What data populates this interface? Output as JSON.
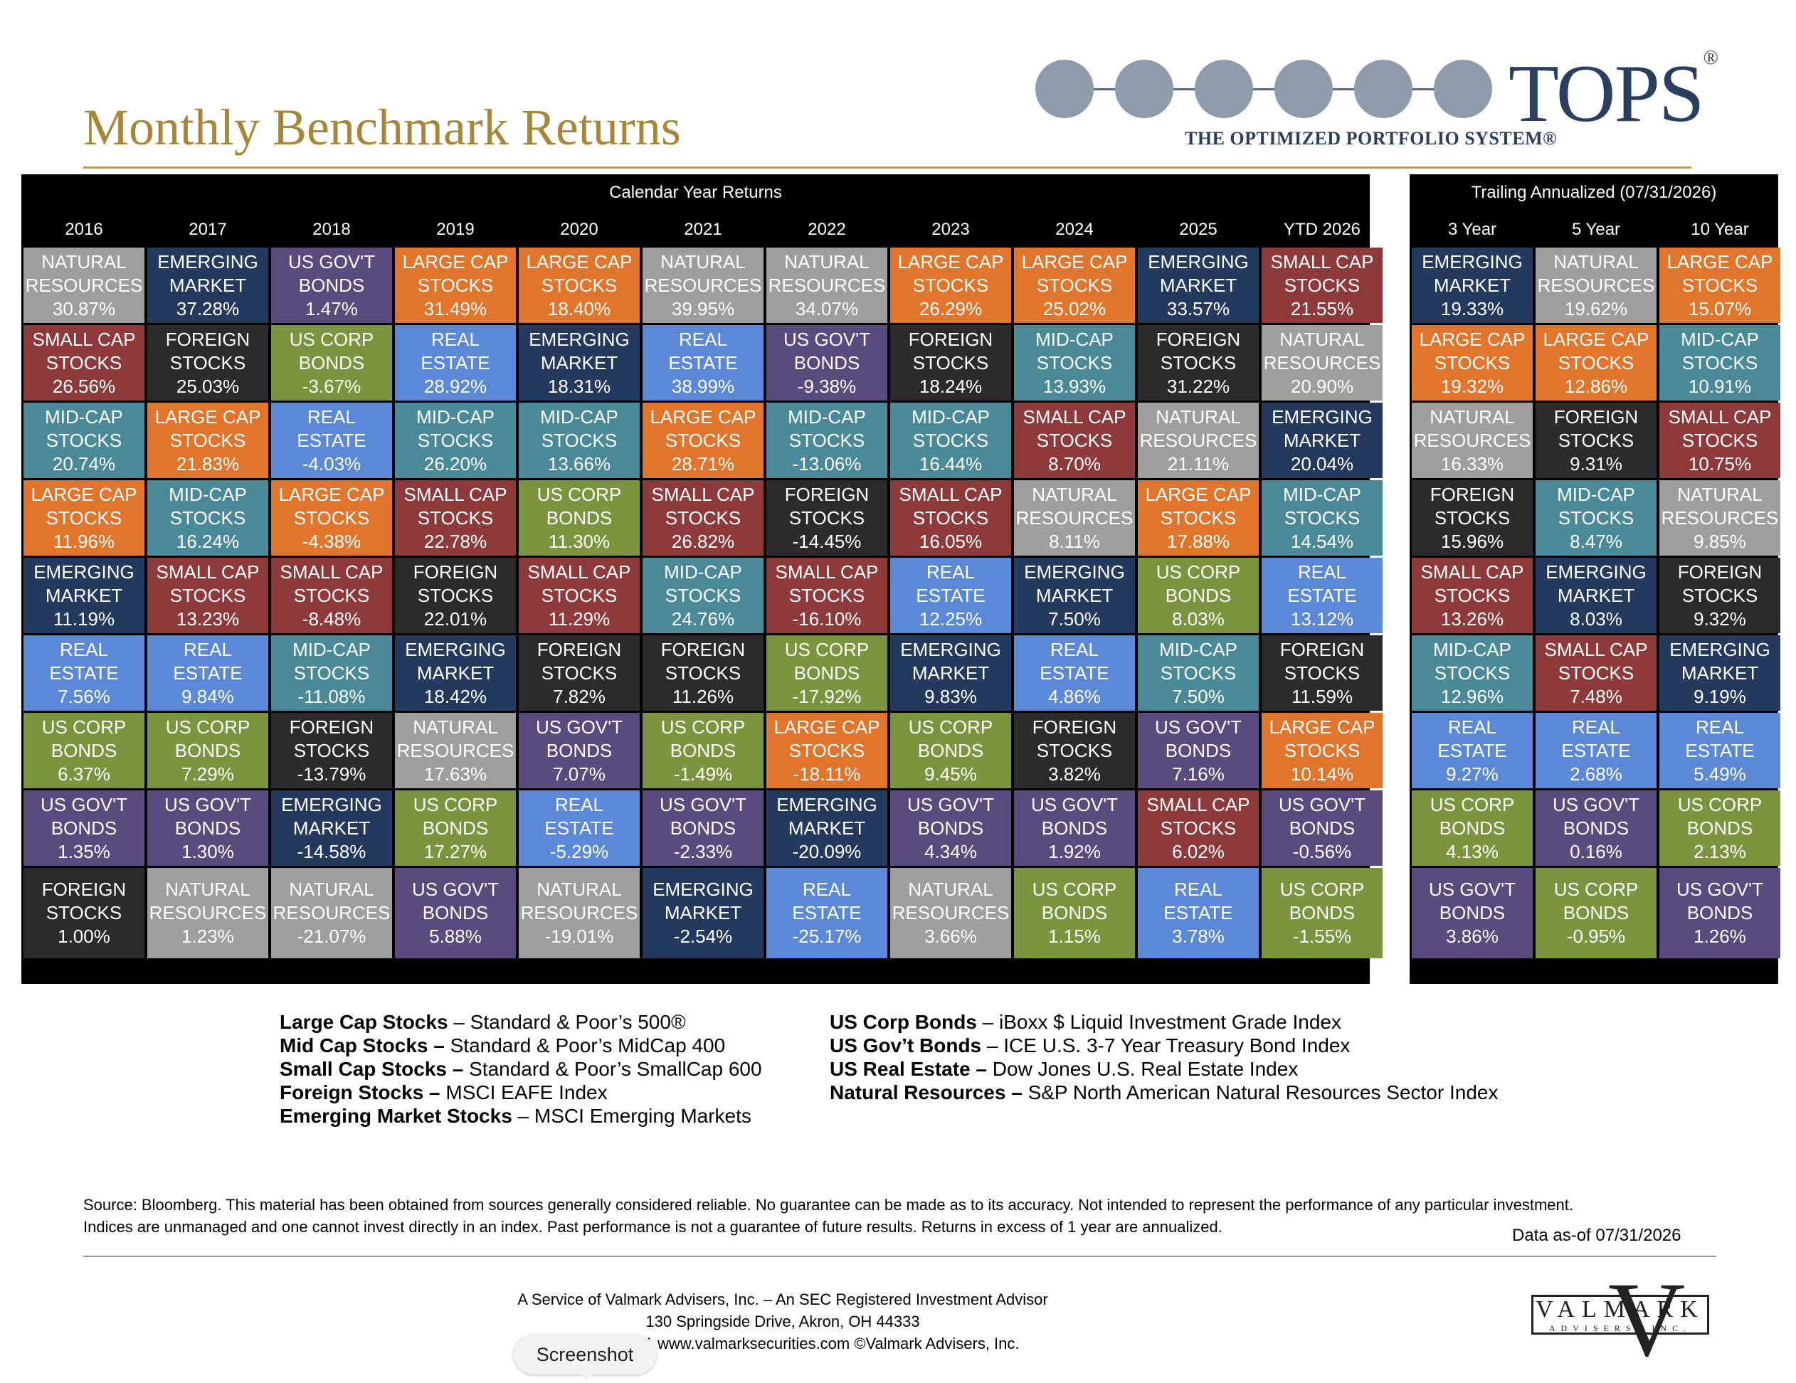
{
  "header": {
    "title": "Monthly Benchmark Returns",
    "logo_word": "TOPS",
    "logo_reg": "®",
    "logo_tagline": "THE OPTIMIZED PORTFOLIO SYSTEM®"
  },
  "calendar": {
    "banner": "Calendar Year Returns",
    "columns": [
      "2016",
      "2017",
      "2018",
      "2019",
      "2020",
      "2021",
      "2022",
      "2023",
      "2024",
      "2025",
      "YTD 2026"
    ]
  },
  "trailing": {
    "banner": "Trailing Annualized (07/31/2026)",
    "columns": [
      "3 Year",
      "5 Year",
      "10 Year"
    ]
  },
  "asset_colors": {
    "NR": "#9e9e9e",
    "EM": "#233a5e",
    "GOV": "#5a4a7e",
    "LC": "#e0752b",
    "SC": "#8e3a3a",
    "FOR": "#2b2b2b",
    "CORP": "#7a953e",
    "RE": "#5b89d8",
    "MID": "#4a8a98"
  },
  "asset_labels": {
    "NR": [
      "NATURAL",
      "RESOURCES"
    ],
    "EM": [
      "EMERGING",
      "MARKET"
    ],
    "GOV": [
      "US GOV'T",
      "BONDS"
    ],
    "LC": [
      "LARGE CAP",
      "STOCKS"
    ],
    "SC": [
      "SMALL CAP",
      "STOCKS"
    ],
    "FOR": [
      "FOREIGN",
      "STOCKS"
    ],
    "CORP": [
      "US CORP",
      "BONDS"
    ],
    "RE": [
      "REAL",
      "ESTATE"
    ],
    "MID": [
      "MID-CAP",
      "STOCKS"
    ]
  },
  "chart_data": {
    "type": "table",
    "calendar_year_returns": [
      [
        {
          "a": "NR",
          "v": "30.87%"
        },
        {
          "a": "EM",
          "v": "37.28%"
        },
        {
          "a": "GOV",
          "v": "1.47%"
        },
        {
          "a": "LC",
          "v": "31.49%"
        },
        {
          "a": "LC",
          "v": "18.40%"
        },
        {
          "a": "NR",
          "v": "39.95%"
        },
        {
          "a": "NR",
          "v": "34.07%"
        },
        {
          "a": "LC",
          "v": "26.29%"
        },
        {
          "a": "LC",
          "v": "25.02%"
        },
        {
          "a": "EM",
          "v": "33.57%"
        },
        {
          "a": "SC",
          "v": "21.55%"
        }
      ],
      [
        {
          "a": "SC",
          "v": "26.56%"
        },
        {
          "a": "FOR",
          "v": "25.03%"
        },
        {
          "a": "CORP",
          "v": "-3.67%"
        },
        {
          "a": "RE",
          "v": "28.92%"
        },
        {
          "a": "EM",
          "v": "18.31%"
        },
        {
          "a": "RE",
          "v": "38.99%"
        },
        {
          "a": "GOV",
          "v": "-9.38%"
        },
        {
          "a": "FOR",
          "v": "18.24%"
        },
        {
          "a": "MID",
          "v": "13.93%"
        },
        {
          "a": "FOR",
          "v": "31.22%"
        },
        {
          "a": "NR",
          "v": "20.90%"
        }
      ],
      [
        {
          "a": "MID",
          "v": "20.74%"
        },
        {
          "a": "LC",
          "v": "21.83%"
        },
        {
          "a": "RE",
          "v": "-4.03%"
        },
        {
          "a": "MID",
          "v": "26.20%"
        },
        {
          "a": "MID",
          "v": "13.66%"
        },
        {
          "a": "LC",
          "v": "28.71%"
        },
        {
          "a": "MID",
          "v": "-13.06%"
        },
        {
          "a": "MID",
          "v": "16.44%"
        },
        {
          "a": "SC",
          "v": "8.70%"
        },
        {
          "a": "NR",
          "v": "21.11%"
        },
        {
          "a": "EM",
          "v": "20.04%"
        }
      ],
      [
        {
          "a": "LC",
          "v": "11.96%"
        },
        {
          "a": "MID",
          "v": "16.24%"
        },
        {
          "a": "LC",
          "v": "-4.38%"
        },
        {
          "a": "SC",
          "v": "22.78%"
        },
        {
          "a": "CORP",
          "v": "11.30%"
        },
        {
          "a": "SC",
          "v": "26.82%"
        },
        {
          "a": "FOR",
          "v": "-14.45%"
        },
        {
          "a": "SC",
          "v": "16.05%"
        },
        {
          "a": "NR",
          "v": "8.11%"
        },
        {
          "a": "LC",
          "v": "17.88%"
        },
        {
          "a": "MID",
          "v": "14.54%"
        }
      ],
      [
        {
          "a": "EM",
          "v": "11.19%"
        },
        {
          "a": "SC",
          "v": "13.23%"
        },
        {
          "a": "SC",
          "v": "-8.48%"
        },
        {
          "a": "FOR",
          "v": "22.01%"
        },
        {
          "a": "SC",
          "v": "11.29%"
        },
        {
          "a": "MID",
          "v": "24.76%"
        },
        {
          "a": "SC",
          "v": "-16.10%"
        },
        {
          "a": "RE",
          "v": "12.25%"
        },
        {
          "a": "EM",
          "v": "7.50%"
        },
        {
          "a": "CORP",
          "v": "8.03%"
        },
        {
          "a": "RE",
          "v": "13.12%"
        }
      ],
      [
        {
          "a": "RE",
          "v": "7.56%"
        },
        {
          "a": "RE",
          "v": "9.84%"
        },
        {
          "a": "MID",
          "v": "-11.08%"
        },
        {
          "a": "EM",
          "v": "18.42%"
        },
        {
          "a": "FOR",
          "v": "7.82%"
        },
        {
          "a": "FOR",
          "v": "11.26%"
        },
        {
          "a": "CORP",
          "v": "-17.92%"
        },
        {
          "a": "EM",
          "v": "9.83%"
        },
        {
          "a": "RE",
          "v": "4.86%"
        },
        {
          "a": "MID",
          "v": "7.50%"
        },
        {
          "a": "FOR",
          "v": "11.59%"
        }
      ],
      [
        {
          "a": "CORP",
          "v": "6.37%"
        },
        {
          "a": "CORP",
          "v": "7.29%"
        },
        {
          "a": "FOR",
          "v": "-13.79%"
        },
        {
          "a": "NR",
          "v": "17.63%"
        },
        {
          "a": "GOV",
          "v": "7.07%"
        },
        {
          "a": "CORP",
          "v": "-1.49%"
        },
        {
          "a": "LC",
          "v": "-18.11%"
        },
        {
          "a": "CORP",
          "v": "9.45%"
        },
        {
          "a": "FOR",
          "v": "3.82%"
        },
        {
          "a": "GOV",
          "v": "7.16%"
        },
        {
          "a": "LC",
          "v": "10.14%"
        }
      ],
      [
        {
          "a": "GOV",
          "v": "1.35%"
        },
        {
          "a": "GOV",
          "v": "1.30%"
        },
        {
          "a": "EM",
          "v": "-14.58%"
        },
        {
          "a": "CORP",
          "v": "17.27%"
        },
        {
          "a": "RE",
          "v": "-5.29%"
        },
        {
          "a": "GOV",
          "v": "-2.33%"
        },
        {
          "a": "EM",
          "v": "-20.09%"
        },
        {
          "a": "GOV",
          "v": "4.34%"
        },
        {
          "a": "GOV",
          "v": "1.92%"
        },
        {
          "a": "SC",
          "v": "6.02%"
        },
        {
          "a": "GOV",
          "v": "-0.56%"
        }
      ],
      [
        {
          "a": "FOR",
          "v": "1.00%"
        },
        {
          "a": "NR",
          "v": "1.23%"
        },
        {
          "a": "NR",
          "v": "-21.07%"
        },
        {
          "a": "GOV",
          "v": "5.88%"
        },
        {
          "a": "NR",
          "v": "-19.01%"
        },
        {
          "a": "EM",
          "v": "-2.54%"
        },
        {
          "a": "RE",
          "v": "-25.17%"
        },
        {
          "a": "NR",
          "v": "3.66%"
        },
        {
          "a": "CORP",
          "v": "1.15%"
        },
        {
          "a": "RE",
          "v": "3.78%"
        },
        {
          "a": "CORP",
          "v": "-1.55%"
        }
      ]
    ],
    "trailing_annualized": [
      [
        {
          "a": "EM",
          "v": "19.33%"
        },
        {
          "a": "NR",
          "v": "19.62%"
        },
        {
          "a": "LC",
          "v": "15.07%"
        }
      ],
      [
        {
          "a": "LC",
          "v": "19.32%"
        },
        {
          "a": "LC",
          "v": "12.86%"
        },
        {
          "a": "MID",
          "v": "10.91%"
        }
      ],
      [
        {
          "a": "NR",
          "v": "16.33%"
        },
        {
          "a": "FOR",
          "v": "9.31%"
        },
        {
          "a": "SC",
          "v": "10.75%"
        }
      ],
      [
        {
          "a": "FOR",
          "v": "15.96%"
        },
        {
          "a": "MID",
          "v": "8.47%"
        },
        {
          "a": "NR",
          "v": "9.85%"
        }
      ],
      [
        {
          "a": "SC",
          "v": "13.26%"
        },
        {
          "a": "EM",
          "v": "8.03%"
        },
        {
          "a": "FOR",
          "v": "9.32%"
        }
      ],
      [
        {
          "a": "MID",
          "v": "12.96%"
        },
        {
          "a": "SC",
          "v": "7.48%"
        },
        {
          "a": "EM",
          "v": "9.19%"
        }
      ],
      [
        {
          "a": "RE",
          "v": "9.27%"
        },
        {
          "a": "RE",
          "v": "2.68%"
        },
        {
          "a": "RE",
          "v": "5.49%"
        }
      ],
      [
        {
          "a": "CORP",
          "v": "4.13%"
        },
        {
          "a": "GOV",
          "v": "0.16%"
        },
        {
          "a": "CORP",
          "v": "2.13%"
        }
      ],
      [
        {
          "a": "GOV",
          "v": "3.86%"
        },
        {
          "a": "CORP",
          "v": "-0.95%"
        },
        {
          "a": "GOV",
          "v": "1.26%"
        }
      ]
    ]
  },
  "legend": {
    "left": [
      {
        "name": "Large Cap Stocks",
        "sep": " – ",
        "index": "Standard & Poor’s 500®"
      },
      {
        "name": "Mid Cap Stocks –",
        "sep": " ",
        "index": "Standard & Poor’s MidCap 400"
      },
      {
        "name": "Small Cap Stocks –",
        "sep": " ",
        "index": "Standard & Poor’s SmallCap 600"
      },
      {
        "name": "Foreign Stocks –",
        "sep": " ",
        "index": "MSCI EAFE Index"
      },
      {
        "name": "Emerging Market Stocks",
        "sep": " – ",
        "index": "MSCI Emerging Markets"
      }
    ],
    "right": [
      {
        "name": "US Corp Bonds",
        "sep": " – ",
        "index": "iBoxx $ Liquid Investment Grade Index"
      },
      {
        "name": "US Gov’t Bonds",
        "sep": " – ",
        "index": "ICE U.S. 3-7 Year Treasury Bond Index"
      },
      {
        "name": "US Real Estate –",
        "sep": " ",
        "index": "Dow Jones U.S. Real Estate Index"
      },
      {
        "name": "Natural Resources –",
        "sep": " ",
        "index": "S&P North American Natural Resources Sector Index"
      }
    ]
  },
  "disclaimer": {
    "line1": "Source: Bloomberg. This material has been obtained from sources generally considered reliable. No guarantee can be made as to its accuracy. Not intended to represent the performance of any particular investment.",
    "line2": "Indices are unmanaged and one cannot invest directly in an index. Past performance is not a guarantee of future results.  Returns in excess of 1 year are annualized.",
    "data_as_of": "Data as-of 07/31/2026"
  },
  "footer": {
    "line1": "A Service of Valmark Advisers, Inc. – An SEC Registered Investment Advisor",
    "line2": "130 Springside Drive, Akron, OH  44333",
    "line3": "(800) 765-5201  www.valmarksecurities.com  ©Valmark Advisers, Inc.",
    "logo_word": "VALMARK",
    "logo_sub": "ADVISERS, INC.",
    "logo_v": "V"
  },
  "overlay": {
    "screenshot_label": "Screenshot"
  }
}
